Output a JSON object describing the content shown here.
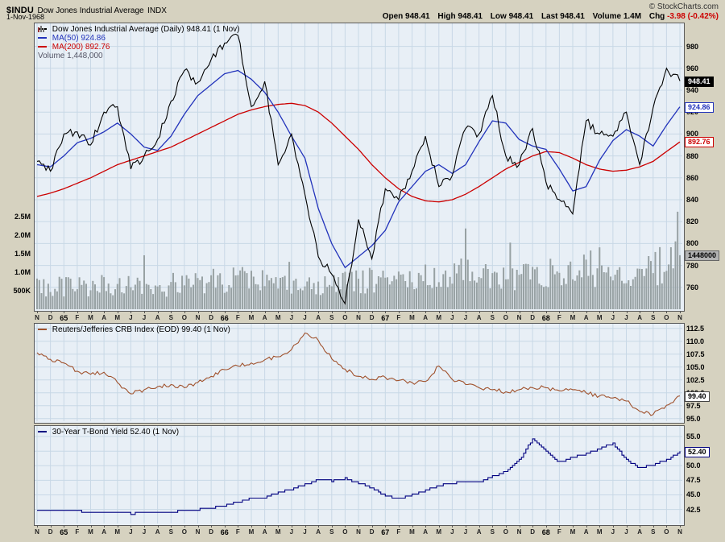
{
  "header": {
    "symbol": "$INDU",
    "title": "Dow Jones Industrial Average",
    "exchange": "INDX",
    "date": "1-Nov-1968",
    "copyright": "© StockCharts.com",
    "quote": {
      "open_label": "Open",
      "open": "948.41",
      "high_label": "High",
      "high": "948.41",
      "low_label": "Low",
      "low": "948.41",
      "last_label": "Last",
      "last": "948.41",
      "volume_label": "Volume",
      "volume": "1.4M",
      "chg_label": "Chg",
      "chg": "-3.98 (-0.42%)"
    }
  },
  "main_chart": {
    "legend": {
      "price": "Dow Jones Industrial Average (Daily) 948.41 (1 Nov)",
      "ma50": "MA(50) 924.86",
      "ma200": "MA(200) 892.76",
      "volume": "Volume 1,448,000"
    },
    "labels": {
      "last": "948.41",
      "ma50": "924.86",
      "ma200": "892.76",
      "volume": "1448000"
    }
  },
  "crb_chart": {
    "legend": "Reuters/Jefferies CRB Index (EOD) 99.40 (1 Nov)",
    "label": "99.40"
  },
  "bond_chart": {
    "legend": "30-Year T-Bond Yield 52.40 (1 Nov)",
    "label": "52.40"
  },
  "colors": {
    "page_bg": "#d6d2c0",
    "plot_bg": "#e8eff6",
    "grid": "#c8d8e6",
    "price": "#000000",
    "ma50": "#2233bb",
    "ma200": "#cc0000",
    "volume_bars": "#97a1a3",
    "crb": "#a0522d",
    "tbond": "#000080",
    "negative": "#cc0000"
  },
  "chart_data": [
    {
      "type": "line",
      "title": "Dow Jones Industrial Average (Daily)",
      "categories": [
        "N",
        "D",
        "65",
        "F",
        "M",
        "A",
        "M",
        "J",
        "J",
        "A",
        "S",
        "O",
        "N",
        "D",
        "66",
        "F",
        "M",
        "A",
        "M",
        "J",
        "J",
        "A",
        "S",
        "O",
        "N",
        "D",
        "67",
        "F",
        "M",
        "A",
        "M",
        "J",
        "J",
        "A",
        "S",
        "O",
        "N",
        "D",
        "68",
        "F",
        "M",
        "A",
        "M",
        "J",
        "J",
        "A",
        "S",
        "O",
        "N"
      ],
      "ylim": [
        740,
        1001
      ],
      "yticks": [
        980,
        960,
        940,
        920,
        900,
        880,
        860,
        840,
        820,
        800,
        780,
        760
      ],
      "ytick_labels": [
        "980",
        "960",
        "940",
        "920",
        "900",
        "880",
        "860",
        "840",
        "820",
        "800",
        "780",
        "760"
      ],
      "last_value": 948.41,
      "series": [
        {
          "name": "Dow Jones Industrial Average",
          "color": "#000000",
          "style": "jagged",
          "values": [
            875,
            866,
            900,
            902,
            890,
            920,
            925,
            868,
            880,
            895,
            930,
            958,
            947,
            968,
            983,
            990,
            925,
            948,
            872,
            900,
            845,
            788,
            772,
            745,
            822,
            786,
            850,
            840,
            866,
            898,
            852,
            862,
            905,
            900,
            935,
            880,
            872,
            905,
            856,
            840,
            827,
            912,
            900,
            898,
            920,
            872,
            924,
            960,
            948.41
          ]
        },
        {
          "name": "MA(50)",
          "color": "#2233bb",
          "style": "smooth",
          "values": [
            872,
            870,
            880,
            892,
            896,
            902,
            910,
            900,
            888,
            885,
            898,
            918,
            935,
            945,
            955,
            958,
            950,
            938,
            920,
            898,
            878,
            832,
            800,
            778,
            788,
            798,
            812,
            838,
            852,
            866,
            872,
            864,
            872,
            893,
            912,
            910,
            895,
            889,
            886,
            868,
            848,
            852,
            876,
            894,
            904,
            898,
            889,
            908,
            924.86
          ]
        },
        {
          "name": "MA(200)",
          "color": "#cc0000",
          "style": "smooth",
          "values": [
            843,
            846,
            850,
            855,
            860,
            866,
            872,
            876,
            880,
            884,
            888,
            894,
            900,
            906,
            912,
            918,
            922,
            925,
            927,
            928,
            926,
            920,
            910,
            898,
            886,
            872,
            860,
            850,
            843,
            839,
            838,
            840,
            845,
            852,
            860,
            868,
            874,
            880,
            884,
            883,
            878,
            872,
            868,
            866,
            867,
            870,
            875,
            884,
            892.76
          ]
        }
      ],
      "volume": {
        "name": "Volume",
        "color": "#97a1a3",
        "last": "1,448,000",
        "max_scale_thousands": 2500,
        "axis": [
          {
            "label": "2.5M",
            "value": 2500
          },
          {
            "label": "2.0M",
            "value": 2000
          },
          {
            "label": "1.5M",
            "value": 1500
          },
          {
            "label": "1.0M",
            "value": 1000
          },
          {
            "label": "500K",
            "value": 500
          }
        ],
        "values_thousands": [
          560,
          580,
          620,
          650,
          600,
          640,
          680,
          720,
          560,
          540,
          620,
          700,
          680,
          720,
          780,
          820,
          760,
          700,
          680,
          640,
          620,
          660,
          700,
          820,
          780,
          740,
          820,
          860,
          800,
          900,
          820,
          860,
          980,
          900,
          940,
          880,
          860,
          920,
          980,
          940,
          900,
          1150,
          1050,
          1000,
          950,
          900,
          1050,
          1300,
          1448
        ]
      }
    },
    {
      "type": "line",
      "title": "Reuters/Jefferies CRB Index (EOD)",
      "categories": [
        "N",
        "D",
        "65",
        "F",
        "M",
        "A",
        "M",
        "J",
        "J",
        "A",
        "S",
        "O",
        "N",
        "D",
        "66",
        "F",
        "M",
        "A",
        "M",
        "J",
        "J",
        "A",
        "S",
        "O",
        "N",
        "D",
        "67",
        "F",
        "M",
        "A",
        "M",
        "J",
        "J",
        "A",
        "S",
        "O",
        "N",
        "D",
        "68",
        "F",
        "M",
        "A",
        "M",
        "J",
        "J",
        "A",
        "S",
        "O",
        "N"
      ],
      "ylim": [
        94.5,
        113.4
      ],
      "yticks": [
        112.5,
        110.0,
        107.5,
        105.0,
        102.5,
        100.0,
        97.5,
        95.0
      ],
      "ytick_labels": [
        "112.5",
        "110.0",
        "107.5",
        "105.0",
        "102.5",
        "100.0",
        "97.5",
        "95.0"
      ],
      "last_value": 99.4,
      "series": [
        {
          "name": "Reuters/Jefferies CRB Index",
          "color": "#a0522d",
          "style": "jagged",
          "values": [
            107.8,
            106.5,
            105.8,
            104.2,
            103.6,
            104.0,
            102.0,
            99.8,
            100.6,
            101.2,
            101.6,
            101.0,
            102.0,
            103.2,
            104.5,
            105.2,
            105.8,
            106.4,
            107.0,
            108.4,
            111.6,
            110.2,
            106.6,
            104.6,
            103.2,
            102.6,
            103.0,
            102.4,
            102.0,
            102.2,
            105.2,
            102.6,
            101.6,
            101.0,
            100.6,
            100.2,
            100.6,
            101.0,
            101.0,
            100.4,
            100.6,
            100.0,
            99.4,
            99.0,
            98.4,
            96.4,
            95.8,
            97.6,
            99.4
          ]
        }
      ]
    },
    {
      "type": "step-line",
      "title": "30-Year T-Bond Yield",
      "categories": [
        "N",
        "D",
        "65",
        "F",
        "M",
        "A",
        "M",
        "J",
        "J",
        "A",
        "S",
        "O",
        "N",
        "D",
        "66",
        "F",
        "M",
        "A",
        "M",
        "J",
        "J",
        "A",
        "S",
        "O",
        "N",
        "D",
        "67",
        "F",
        "M",
        "A",
        "M",
        "J",
        "J",
        "A",
        "S",
        "O",
        "N",
        "D",
        "68",
        "F",
        "M",
        "A",
        "M",
        "J",
        "J",
        "A",
        "S",
        "O",
        "N"
      ],
      "ylim": [
        40.1,
        56.8
      ],
      "yticks": [
        55.0,
        52.5,
        50.0,
        47.5,
        45.0,
        42.5
      ],
      "ytick_labels": [
        "55.0",
        "52.5",
        "50.0",
        "47.5",
        "45.0",
        "42.5"
      ],
      "last_value": 52.4,
      "series": [
        {
          "name": "30-Year T-Bond Yield",
          "color": "#000080",
          "style": "step",
          "values": [
            42.4,
            42.3,
            42.3,
            42.2,
            42.1,
            42.0,
            42.0,
            41.8,
            41.9,
            42.0,
            42.1,
            42.3,
            42.5,
            42.8,
            43.2,
            43.8,
            44.4,
            44.6,
            45.4,
            46.0,
            46.8,
            47.6,
            47.4,
            47.8,
            47.0,
            46.2,
            44.8,
            44.4,
            45.0,
            45.8,
            46.6,
            47.0,
            47.4,
            47.2,
            48.2,
            49.0,
            51.0,
            54.6,
            52.5,
            50.6,
            51.5,
            52.0,
            53.0,
            53.8,
            51.0,
            49.6,
            50.2,
            51.0,
            52.4
          ]
        }
      ]
    }
  ]
}
